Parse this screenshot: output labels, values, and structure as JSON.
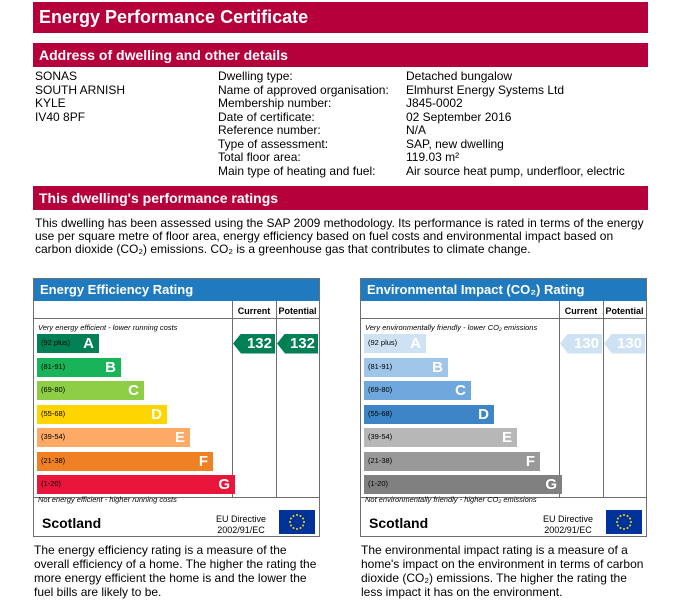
{
  "title": "Energy Performance Certificate",
  "address_section": {
    "heading": "Address of dwelling and other details",
    "address_lines": [
      "SONAS",
      "SOUTH ARNISH",
      "KYLE",
      "IV40 8PF"
    ],
    "details": [
      {
        "label": "Dwelling type:",
        "value": "Detached bungalow"
      },
      {
        "label": "Name of approved organisation:",
        "value": "Elmhurst Energy Systems Ltd"
      },
      {
        "label": "Membership number:",
        "value": "J845-0002"
      },
      {
        "label": "Date of certificate:",
        "value": "02 September 2016"
      },
      {
        "label": "Reference number:",
        "value": "N/A"
      },
      {
        "label": "Type of assessment:",
        "value": "SAP, new dwelling"
      },
      {
        "label": "Total floor area:",
        "value": "119.03 m²"
      },
      {
        "label": "Main type of heating and fuel:",
        "value": "Air source heat pump, underfloor, electric"
      }
    ]
  },
  "ratings_section": {
    "heading": "This dwelling's performance ratings",
    "paragraph": "This dwelling has been assessed using the SAP 2009 methodology. Its performance is rated in terms of the energy use per square metre of floor area, energy efficiency based on fuel costs and environmental impact based on carbon dioxide (CO₂) emissions. CO₂ is a greenhouse gas that contributes to climate change."
  },
  "energy_chart": {
    "heading": "Energy Efficiency Rating",
    "col_current": "Current",
    "col_potential": "Potential",
    "top_note": "Very energy efficient - lower running costs",
    "bottom_note": "Not energy efficient - higher running costs",
    "bands": [
      {
        "range": "(92 plus)",
        "letter": "A",
        "color": "#008054",
        "width": 0.27
      },
      {
        "range": "(81-91)",
        "letter": "B",
        "color": "#19b459",
        "width": 0.37
      },
      {
        "range": "(69-80)",
        "letter": "C",
        "color": "#8dce46",
        "width": 0.47
      },
      {
        "range": "(55-68)",
        "letter": "D",
        "color": "#ffd500",
        "width": 0.57
      },
      {
        "range": "(39-54)",
        "letter": "E",
        "color": "#fcaa65",
        "width": 0.67
      },
      {
        "range": "(21-38)",
        "letter": "F",
        "color": "#ef8023",
        "width": 0.77
      },
      {
        "range": "(1-20)",
        "letter": "G",
        "color": "#e9153b",
        "width": 0.87
      }
    ],
    "current": "132",
    "potential": "132",
    "arrow_color": "#008054",
    "country": "Scotland",
    "directive": "EU Directive",
    "directive_num": "2002/91/EC",
    "footer": "The energy efficiency rating is a measure of the overall efficiency of a home. The higher the rating the more energy efficient the home is and the lower the fuel bills are likely to be."
  },
  "env_chart": {
    "heading": "Environmental Impact (CO₂) Rating",
    "col_current": "Current",
    "col_potential": "Potential",
    "top_note": "Very environmentally friendly - lower CO₂ emissions",
    "bottom_note": "Not environmentally friendly - higher CO₂ emissions",
    "bands": [
      {
        "range": "(92 plus)",
        "letter": "A",
        "color": "#cfe2f3",
        "width": 0.27
      },
      {
        "range": "(81-91)",
        "letter": "B",
        "color": "#9fc5e8",
        "width": 0.37
      },
      {
        "range": "(69-80)",
        "letter": "C",
        "color": "#6fa8dc",
        "width": 0.47
      },
      {
        "range": "(55-68)",
        "letter": "D",
        "color": "#3d85c6",
        "width": 0.57
      },
      {
        "range": "(39-54)",
        "letter": "E",
        "color": "#b7b7b7",
        "width": 0.67
      },
      {
        "range": "(21-38)",
        "letter": "F",
        "color": "#999999",
        "width": 0.77
      },
      {
        "range": "(1-20)",
        "letter": "G",
        "color": "#808080",
        "width": 0.87
      }
    ],
    "current": "130",
    "potential": "130",
    "arrow_color": "#cfe2f3",
    "country": "Scotland",
    "directive": "EU Directive",
    "directive_num": "2002/91/EC",
    "footer": "The environmental impact rating is a measure of a home's impact on the environment in terms of carbon dioxide (CO₂) emissions. The higher the rating the less impact it has on the environment."
  }
}
